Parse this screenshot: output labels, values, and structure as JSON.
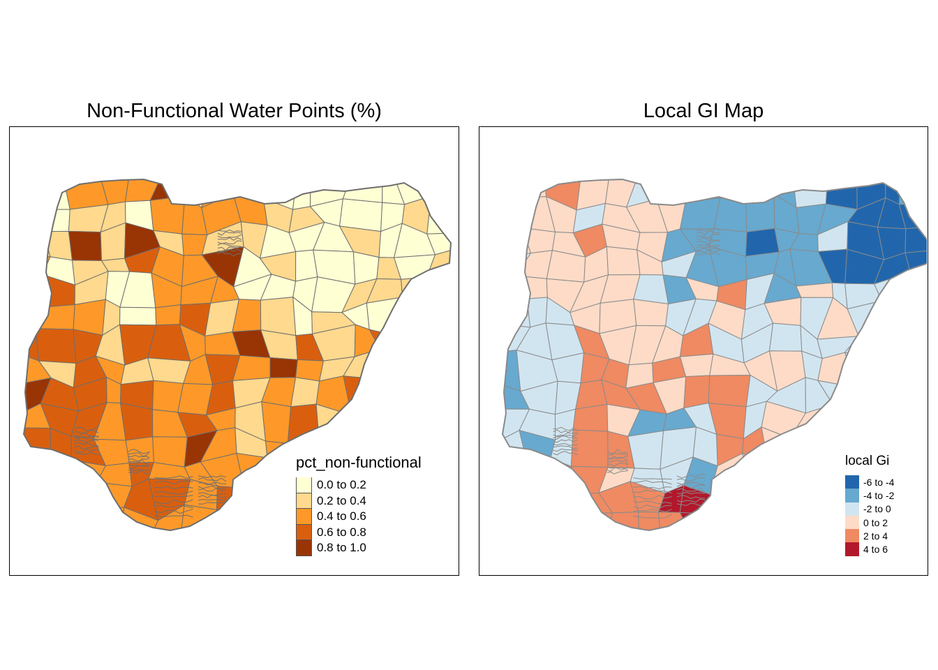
{
  "left_map": {
    "title": "Non-Functional Water Points (%)",
    "legend": {
      "title": "pct_non-functional",
      "classes": [
        {
          "label": "0.0 to 0.2",
          "color": "#ffffd4"
        },
        {
          "label": "0.2 to 0.4",
          "color": "#fed98e"
        },
        {
          "label": "0.4 to 0.6",
          "color": "#fe9929"
        },
        {
          "label": "0.6 to 0.8",
          "color": "#d95f0e"
        },
        {
          "label": "0.8 to 1.0",
          "color": "#993404"
        }
      ]
    }
  },
  "right_map": {
    "title": "Local GI Map",
    "legend": {
      "title": "local Gi",
      "classes": [
        {
          "label": "-6 to -4",
          "color": "#2166ac"
        },
        {
          "label": "-4 to -2",
          "color": "#67a9cf"
        },
        {
          "label": "-2 to 0",
          "color": "#d1e5f0"
        },
        {
          "label": "0 to 2",
          "color": "#fddbc7"
        },
        {
          "label": "2 to 4",
          "color": "#ef8a62"
        },
        {
          "label": "4 to 6",
          "color": "#b2182b"
        }
      ]
    }
  }
}
